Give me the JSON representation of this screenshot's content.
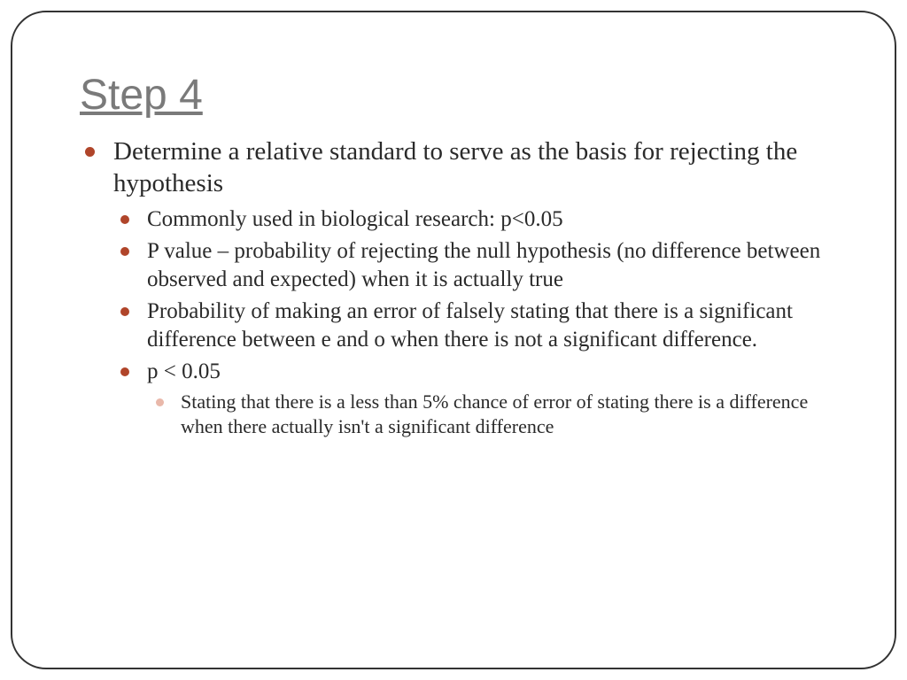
{
  "slide": {
    "title": "Step 4",
    "colors": {
      "title_color": "#7a7a7a",
      "text_color": "#2a2a2a",
      "bullet_l1": "#b0452a",
      "bullet_l2": "#b0452a",
      "bullet_l3": "#e9b8aa",
      "frame_border": "#333333",
      "background": "#ffffff"
    },
    "fonts": {
      "title_size_pt": 36,
      "l1_size_pt": 22,
      "l2_size_pt": 19,
      "l3_size_pt": 17
    },
    "bullets": {
      "l1_0": "Determine a relative standard to serve as the basis for rejecting the hypothesis",
      "l2_0": "Commonly used in biological research: p<0.05",
      "l2_1": "P value – probability of rejecting the null hypothesis (no difference between observed and expected) when it is actually true",
      "l2_2": "Probability of making an error of falsely stating that there is a significant difference between e and o when there is not a significant difference.",
      "l2_3": "p < 0.05",
      "l3_0": "Stating that there is a less than 5% chance of error of stating there is a difference when there actually isn't a significant difference"
    }
  }
}
